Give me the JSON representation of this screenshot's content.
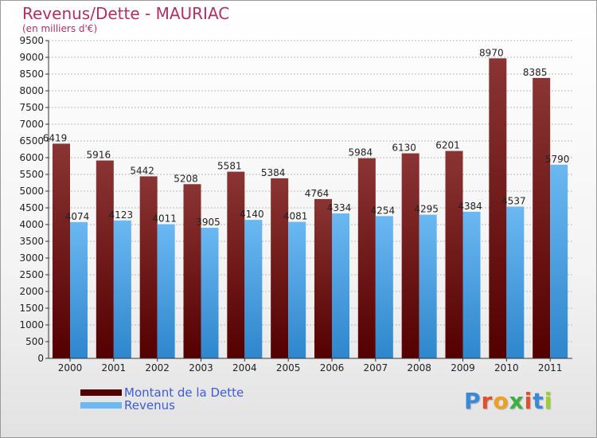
{
  "title": "Revenus/Dette - MAURIAC",
  "subtitle": "(en milliers d'€)",
  "logo": {
    "text": "Proxiti",
    "letter_colors": [
      "#3a88d8",
      "#e0502a",
      "#f0a020",
      "#3ab040",
      "#e0502a",
      "#3a88d8",
      "#9ad030"
    ]
  },
  "colors": {
    "debt_top": "#8a3434",
    "debt_bottom": "#550000",
    "revenue_top": "#6bb8f2",
    "revenue_bottom": "#2e86cc",
    "grid": "#bbbbbb",
    "axis": "#333333"
  },
  "chart_data": {
    "type": "bar",
    "categories": [
      "2000",
      "2001",
      "2002",
      "2003",
      "2004",
      "2005",
      "2006",
      "2007",
      "2008",
      "2009",
      "2010",
      "2011"
    ],
    "series": [
      {
        "name": "Montant de la Dette",
        "values": [
          6419,
          5916,
          5442,
          5208,
          5581,
          5384,
          4764,
          5984,
          6130,
          6201,
          8970,
          8385
        ]
      },
      {
        "name": "Revenus",
        "values": [
          4074,
          4123,
          4011,
          3905,
          4140,
          4081,
          4334,
          4254,
          4295,
          4384,
          4537,
          5790
        ]
      }
    ],
    "ylim": [
      0,
      9500
    ],
    "y_ticks": [
      0,
      500,
      1000,
      1500,
      2000,
      2500,
      3000,
      3500,
      4000,
      4500,
      5000,
      5500,
      6000,
      6500,
      7000,
      7500,
      8000,
      8500,
      9000,
      9500
    ],
    "grid": true,
    "legend_position": "bottom-left"
  }
}
